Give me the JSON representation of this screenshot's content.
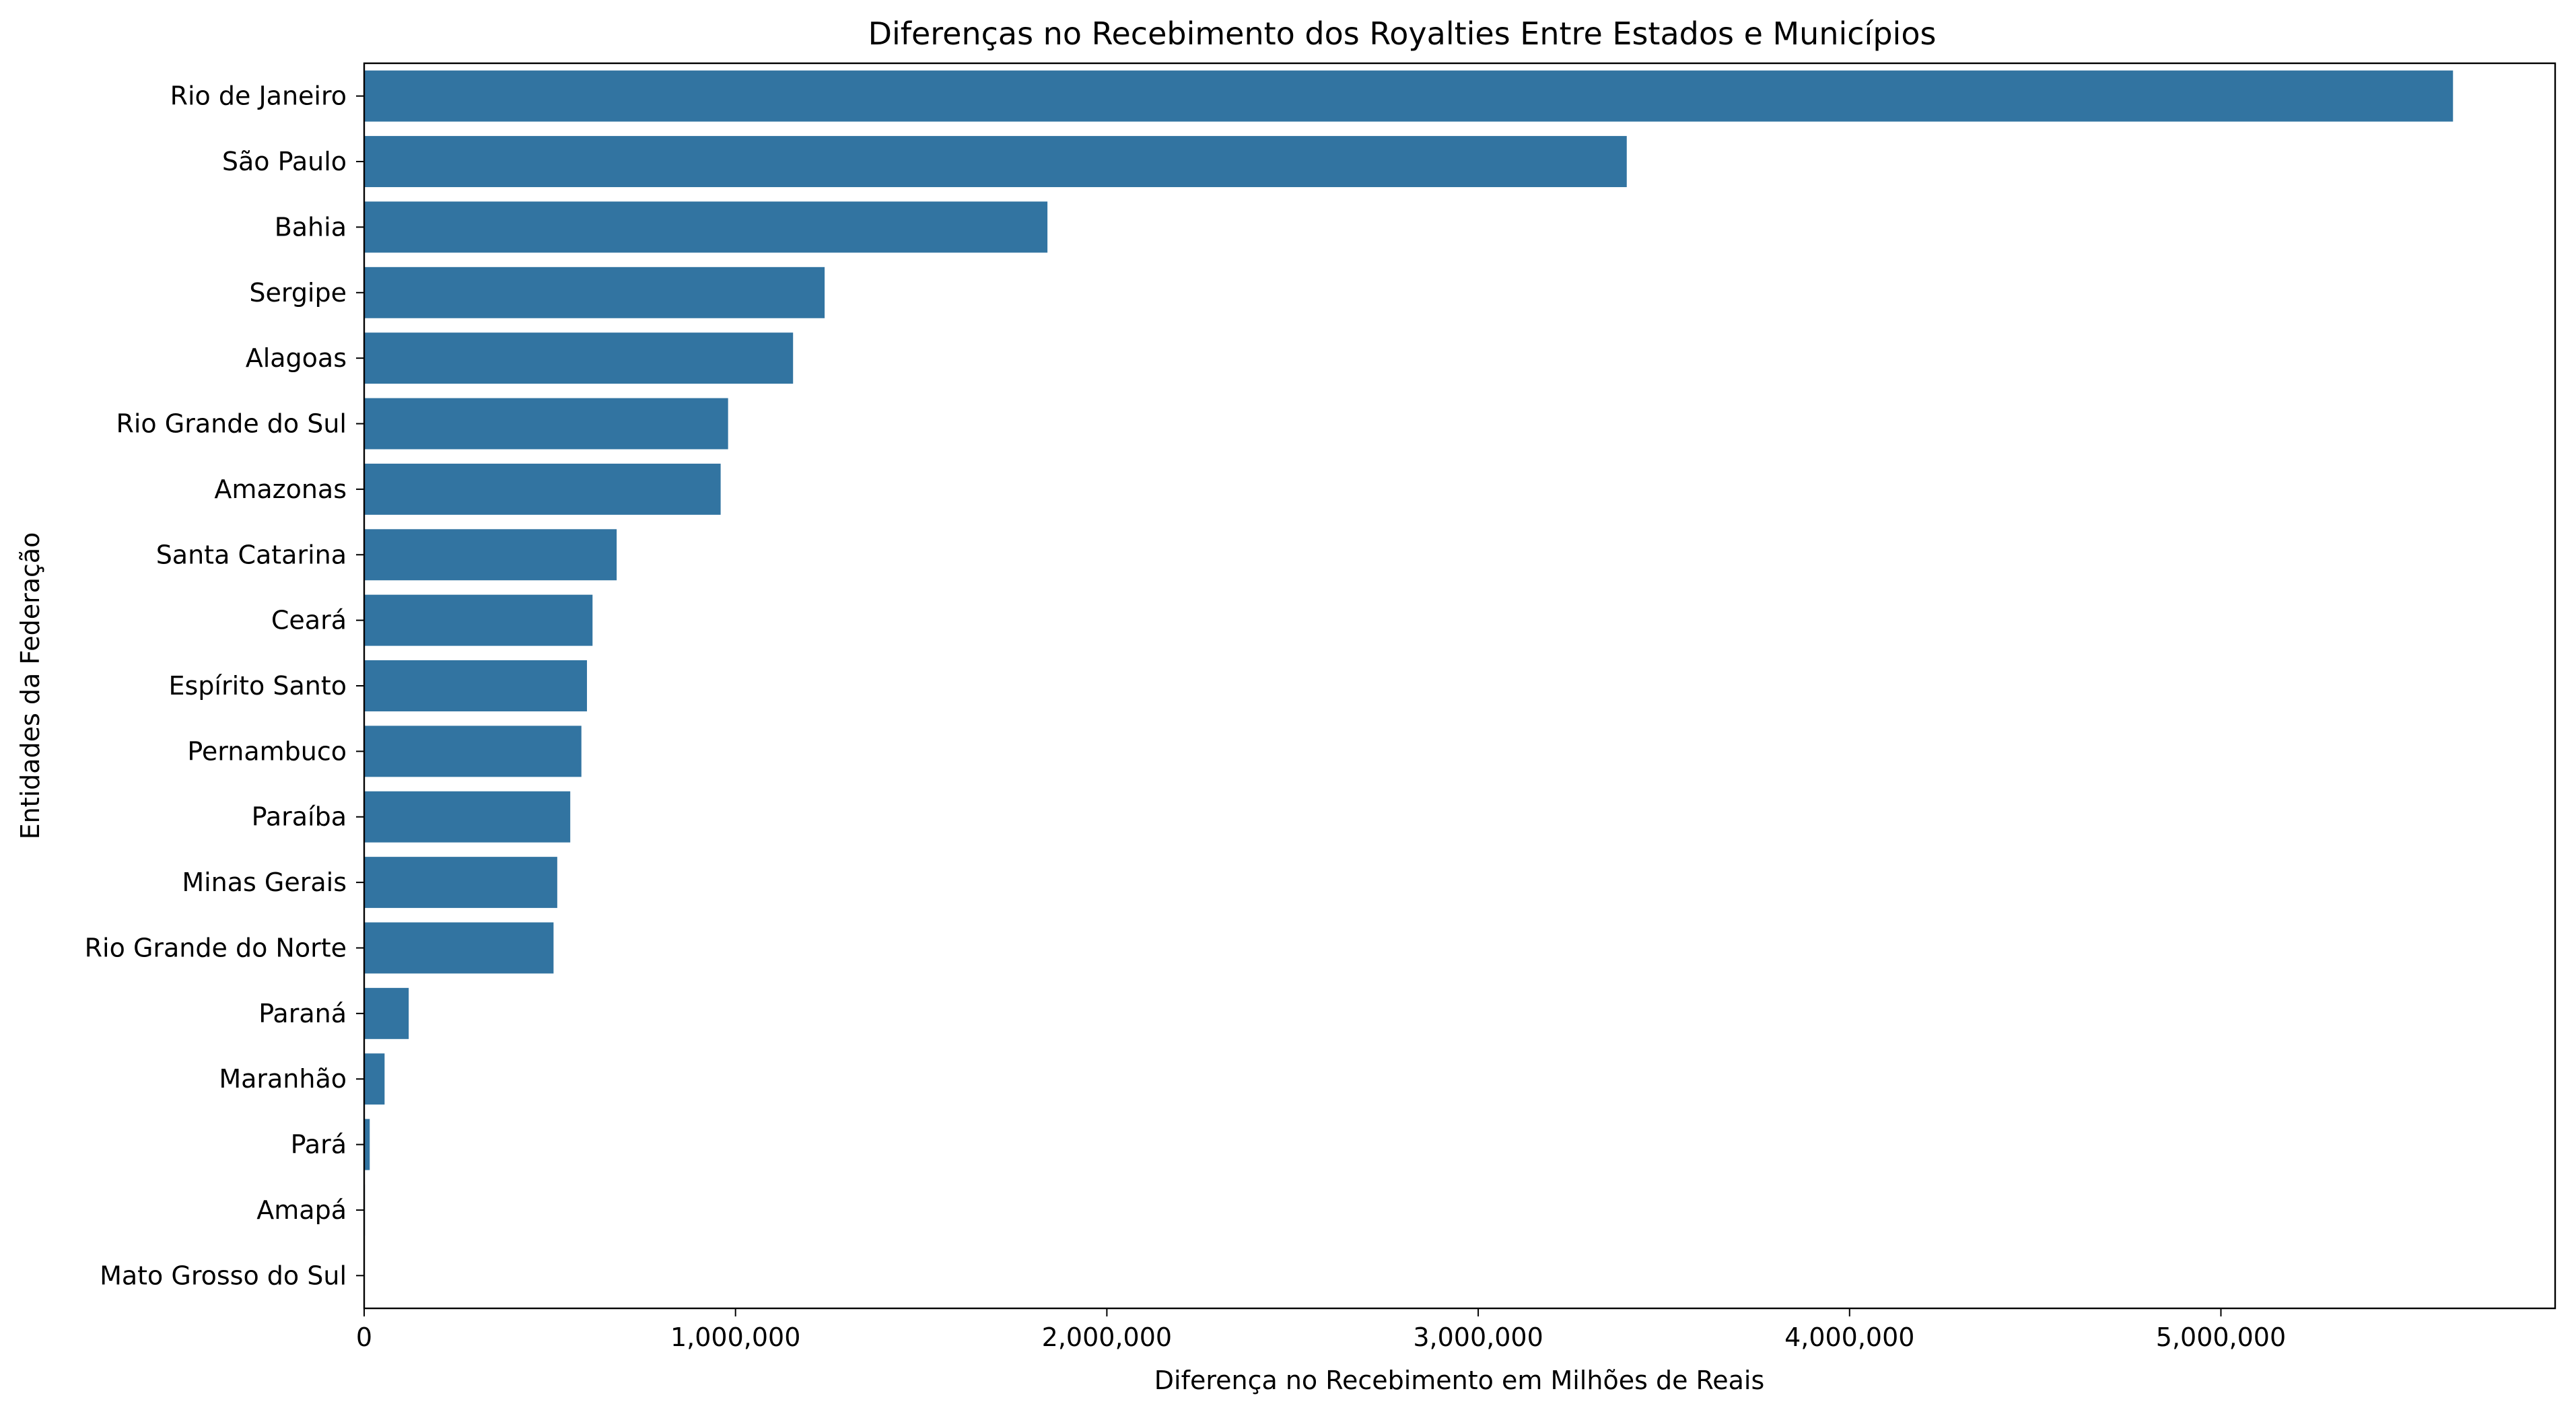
{
  "chart_data": {
    "type": "bar",
    "orientation": "horizontal",
    "title": "Diferenças no Recebimento dos Royalties Entre Estados e Municípios",
    "xlabel": "Diferença no Recebimento em Milhões de Reais",
    "ylabel": "Entidades da Federação",
    "xlim": [
      0,
      5900000
    ],
    "xticks": [
      0,
      1000000,
      2000000,
      3000000,
      4000000,
      5000000
    ],
    "xtick_labels": [
      "0",
      "1,000,000",
      "2,000,000",
      "3,000,000",
      "4,000,000",
      "5,000,000"
    ],
    "grid": false,
    "categories": [
      "Rio de Janeiro",
      "São Paulo",
      "Bahia",
      "Sergipe",
      "Alagoas",
      "Rio Grande do Sul",
      "Amazonas",
      "Santa Catarina",
      "Ceará",
      "Espírito Santo",
      "Pernambuco",
      "Paraíba",
      "Minas Gerais",
      "Rio Grande do Norte",
      "Paraná",
      "Maranhão",
      "Pará",
      "Amapá",
      "Mato Grosso do Sul"
    ],
    "values": [
      5625000,
      3400000,
      1840000,
      1240000,
      1155000,
      980000,
      960000,
      680000,
      615000,
      600000,
      585000,
      555000,
      520000,
      510000,
      120000,
      55000,
      15000,
      2000,
      1000
    ],
    "colors": {
      "bar": "#3274a1",
      "axis": "#000000",
      "background": "#ffffff"
    }
  }
}
